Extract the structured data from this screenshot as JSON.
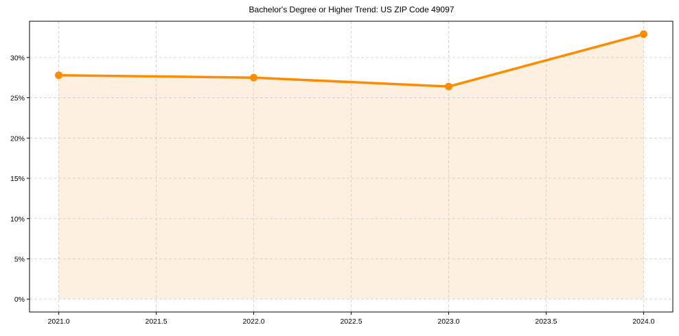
{
  "chart_data": {
    "type": "line",
    "title": "Bachelor's Degree or Higher Trend: US ZIP Code 49097",
    "xlabel": "",
    "ylabel": "",
    "x": [
      2021.0,
      2022.0,
      2023.0,
      2024.0
    ],
    "series": [
      {
        "name": "Bachelor's Degree or Higher",
        "values": [
          27.8,
          27.5,
          26.4,
          32.9
        ],
        "unit": "%",
        "color": "#ff8c00",
        "fill": true,
        "fill_color": "#fdf0e1",
        "marker": "circle"
      }
    ],
    "xticks": [
      "2021.0",
      "2021.5",
      "2022.0",
      "2022.5",
      "2023.0",
      "2023.5",
      "2024.0"
    ],
    "yticks": [
      "0%",
      "5%",
      "10%",
      "15%",
      "20%",
      "25%",
      "30%"
    ],
    "xlim": [
      2020.85,
      2024.15
    ],
    "ylim": [
      -1.6,
      34.5
    ],
    "grid": true,
    "grid_style": "dashed",
    "legend": null
  }
}
